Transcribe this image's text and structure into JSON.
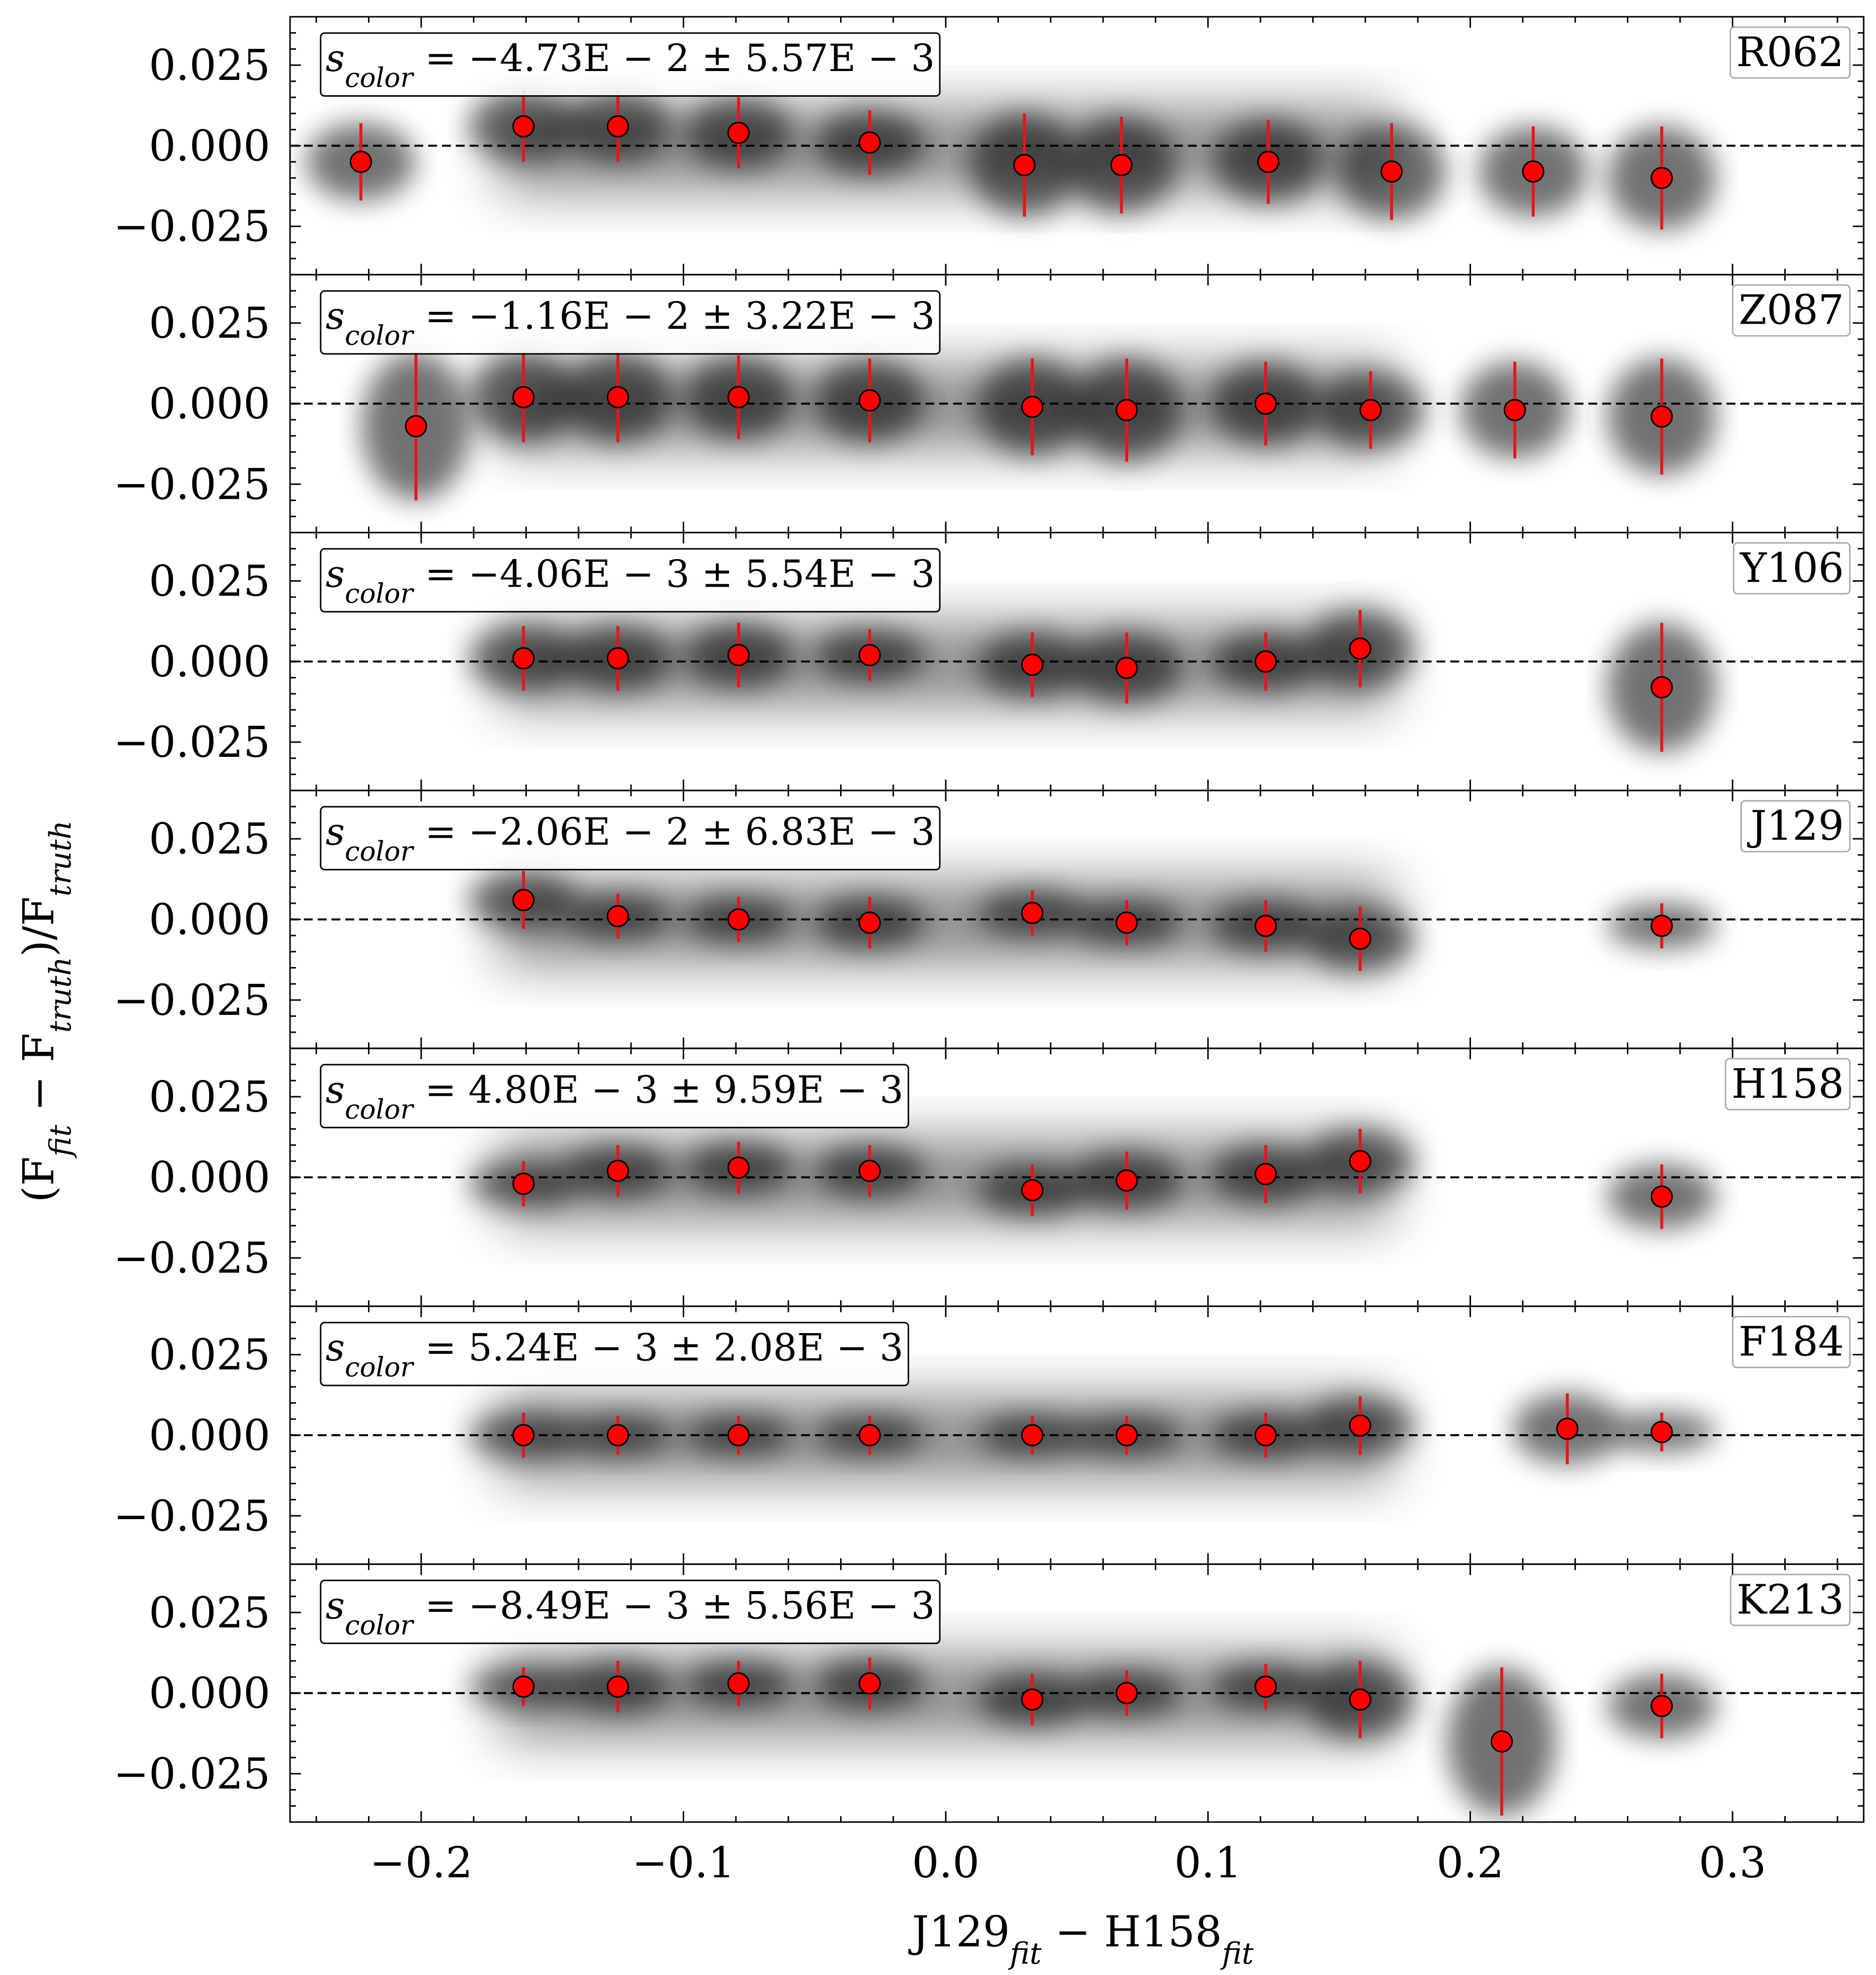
{
  "chart_data": {
    "type": "scatter",
    "xlabel": "J129_fit − H158_fit",
    "ylabel": "(F_fit − F_truth)/F_truth",
    "xlim": [
      -0.25,
      0.35
    ],
    "ylim": [
      -0.04,
      0.04
    ],
    "x_ticks": [
      -0.2,
      -0.1,
      0.0,
      0.1,
      0.2,
      0.3
    ],
    "x_tick_labels": [
      "−0.2",
      "−0.1",
      "0.0",
      "0.1",
      "0.2",
      "0.3"
    ],
    "y_ticks": [
      0.025,
      0.0,
      -0.025
    ],
    "y_tick_labels": [
      "0.025",
      "0.000",
      "−0.025"
    ],
    "reference_line_y": 0.0,
    "marker_color": "#ff0000",
    "errorbar_color": "#e8141c",
    "cloud_color": "#000000",
    "panels": [
      {
        "filter": "R062",
        "slope_label": "s_color = −4.73E − 2 ± 5.57E − 3",
        "points": [
          {
            "x": -0.223,
            "y": -0.005,
            "err": 0.012
          },
          {
            "x": -0.161,
            "y": 0.006,
            "err": 0.011
          },
          {
            "x": -0.125,
            "y": 0.006,
            "err": 0.011
          },
          {
            "x": -0.079,
            "y": 0.004,
            "err": 0.011
          },
          {
            "x": -0.029,
            "y": 0.001,
            "err": 0.01
          },
          {
            "x": 0.03,
            "y": -0.006,
            "err": 0.016
          },
          {
            "x": 0.067,
            "y": -0.006,
            "err": 0.015
          },
          {
            "x": 0.123,
            "y": -0.005,
            "err": 0.013
          },
          {
            "x": 0.17,
            "y": -0.008,
            "err": 0.015
          },
          {
            "x": 0.224,
            "y": -0.008,
            "err": 0.014
          },
          {
            "x": 0.273,
            "y": -0.01,
            "err": 0.016
          }
        ]
      },
      {
        "filter": "Z087",
        "slope_label": "s_color = −1.16E − 2 ± 3.22E − 3",
        "points": [
          {
            "x": -0.202,
            "y": -0.007,
            "err": 0.023
          },
          {
            "x": -0.161,
            "y": 0.002,
            "err": 0.014
          },
          {
            "x": -0.125,
            "y": 0.002,
            "err": 0.014
          },
          {
            "x": -0.079,
            "y": 0.002,
            "err": 0.013
          },
          {
            "x": -0.029,
            "y": 0.001,
            "err": 0.013
          },
          {
            "x": 0.033,
            "y": -0.001,
            "err": 0.015
          },
          {
            "x": 0.069,
            "y": -0.002,
            "err": 0.016
          },
          {
            "x": 0.122,
            "y": 0.0,
            "err": 0.013
          },
          {
            "x": 0.162,
            "y": -0.002,
            "err": 0.012
          },
          {
            "x": 0.217,
            "y": -0.002,
            "err": 0.015
          },
          {
            "x": 0.273,
            "y": -0.004,
            "err": 0.018
          }
        ]
      },
      {
        "filter": "Y106",
        "slope_label": "s_color = −4.06E − 3 ± 5.54E − 3",
        "points": [
          {
            "x": -0.161,
            "y": 0.001,
            "err": 0.01
          },
          {
            "x": -0.125,
            "y": 0.001,
            "err": 0.01
          },
          {
            "x": -0.079,
            "y": 0.002,
            "err": 0.01
          },
          {
            "x": -0.029,
            "y": 0.002,
            "err": 0.008
          },
          {
            "x": 0.033,
            "y": -0.001,
            "err": 0.01
          },
          {
            "x": 0.069,
            "y": -0.002,
            "err": 0.011
          },
          {
            "x": 0.122,
            "y": 0.0,
            "err": 0.009
          },
          {
            "x": 0.158,
            "y": 0.004,
            "err": 0.012
          },
          {
            "x": 0.273,
            "y": -0.008,
            "err": 0.02
          }
        ]
      },
      {
        "filter": "J129",
        "slope_label": "s_color = −2.06E − 2 ± 6.83E − 3",
        "points": [
          {
            "x": -0.161,
            "y": 0.006,
            "err": 0.009
          },
          {
            "x": -0.125,
            "y": 0.001,
            "err": 0.007
          },
          {
            "x": -0.079,
            "y": 0.0,
            "err": 0.007
          },
          {
            "x": -0.029,
            "y": -0.001,
            "err": 0.008
          },
          {
            "x": 0.033,
            "y": 0.002,
            "err": 0.007
          },
          {
            "x": 0.069,
            "y": -0.001,
            "err": 0.007
          },
          {
            "x": 0.122,
            "y": -0.002,
            "err": 0.008
          },
          {
            "x": 0.158,
            "y": -0.006,
            "err": 0.01
          },
          {
            "x": 0.273,
            "y": -0.002,
            "err": 0.007
          }
        ]
      },
      {
        "filter": "H158",
        "slope_label": "s_color = 4.80E − 3 ± 9.59E − 3",
        "points": [
          {
            "x": -0.161,
            "y": -0.002,
            "err": 0.007
          },
          {
            "x": -0.125,
            "y": 0.002,
            "err": 0.008
          },
          {
            "x": -0.079,
            "y": 0.003,
            "err": 0.008
          },
          {
            "x": -0.029,
            "y": 0.002,
            "err": 0.008
          },
          {
            "x": 0.033,
            "y": -0.004,
            "err": 0.008
          },
          {
            "x": 0.069,
            "y": -0.001,
            "err": 0.009
          },
          {
            "x": 0.122,
            "y": 0.001,
            "err": 0.009
          },
          {
            "x": 0.158,
            "y": 0.005,
            "err": 0.01
          },
          {
            "x": 0.273,
            "y": -0.006,
            "err": 0.01
          }
        ]
      },
      {
        "filter": "F184",
        "slope_label": "s_color = 5.24E − 3 ± 2.08E − 3",
        "points": [
          {
            "x": -0.161,
            "y": 0.0,
            "err": 0.007
          },
          {
            "x": -0.125,
            "y": 0.0,
            "err": 0.006
          },
          {
            "x": -0.079,
            "y": 0.0,
            "err": 0.006
          },
          {
            "x": -0.029,
            "y": 0.0,
            "err": 0.006
          },
          {
            "x": 0.033,
            "y": 0.0,
            "err": 0.006
          },
          {
            "x": 0.069,
            "y": 0.0,
            "err": 0.006
          },
          {
            "x": 0.122,
            "y": 0.0,
            "err": 0.007
          },
          {
            "x": 0.158,
            "y": 0.003,
            "err": 0.009
          },
          {
            "x": 0.237,
            "y": 0.002,
            "err": 0.011
          },
          {
            "x": 0.273,
            "y": 0.001,
            "err": 0.006
          }
        ]
      },
      {
        "filter": "K213",
        "slope_label": "s_color = −8.49E − 3 ± 5.56E − 3",
        "points": [
          {
            "x": -0.161,
            "y": 0.002,
            "err": 0.006
          },
          {
            "x": -0.125,
            "y": 0.002,
            "err": 0.008
          },
          {
            "x": -0.079,
            "y": 0.003,
            "err": 0.007
          },
          {
            "x": -0.029,
            "y": 0.003,
            "err": 0.008
          },
          {
            "x": 0.033,
            "y": -0.002,
            "err": 0.008
          },
          {
            "x": 0.069,
            "y": 0.0,
            "err": 0.007
          },
          {
            "x": 0.122,
            "y": 0.002,
            "err": 0.007
          },
          {
            "x": 0.158,
            "y": -0.002,
            "err": 0.012
          },
          {
            "x": 0.212,
            "y": -0.015,
            "err": 0.023
          },
          {
            "x": 0.273,
            "y": -0.004,
            "err": 0.01
          }
        ]
      }
    ]
  }
}
